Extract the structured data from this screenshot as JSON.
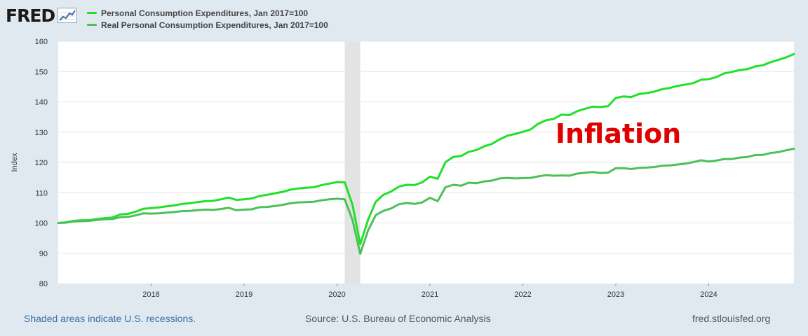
{
  "header": {
    "logo_text": "FRED",
    "logo_icon": "line-graph-icon"
  },
  "colors": {
    "background": "#e1e9f0",
    "plot_bg": "#ffffff",
    "series_1": "#22e02a",
    "series_2": "#4cc05a",
    "recession": "#e3e3e3",
    "annotation": "#e00000"
  },
  "chart_data": {
    "type": "line",
    "title": "",
    "xlabel": "",
    "ylabel": "Index",
    "ylim": [
      80,
      160
    ],
    "yticks": [
      80,
      90,
      100,
      110,
      120,
      130,
      140,
      150,
      160
    ],
    "xlim": [
      2017.0,
      2024.917
    ],
    "xticks": [
      {
        "value": 2018,
        "label": "2018"
      },
      {
        "value": 2019,
        "label": "2019"
      },
      {
        "value": 2020,
        "label": "2020"
      },
      {
        "value": 2021,
        "label": "2021"
      },
      {
        "value": 2022,
        "label": "2022"
      },
      {
        "value": 2023,
        "label": "2023"
      },
      {
        "value": 2024,
        "label": "2024"
      }
    ],
    "grid": true,
    "legend_position": "top-left",
    "recessions": [
      {
        "start": 2020.083,
        "end": 2020.25
      }
    ],
    "annotations": [
      {
        "text": "Inflation",
        "x": 2022.35,
        "y": 126.5
      }
    ],
    "x": [
      2017.0,
      2017.0833,
      2017.1667,
      2017.25,
      2017.3333,
      2017.4167,
      2017.5,
      2017.5833,
      2017.6667,
      2017.75,
      2017.8333,
      2017.9167,
      2018.0,
      2018.0833,
      2018.1667,
      2018.25,
      2018.3333,
      2018.4167,
      2018.5,
      2018.5833,
      2018.6667,
      2018.75,
      2018.8333,
      2018.9167,
      2019.0,
      2019.0833,
      2019.1667,
      2019.25,
      2019.3333,
      2019.4167,
      2019.5,
      2019.5833,
      2019.6667,
      2019.75,
      2019.8333,
      2019.9167,
      2020.0,
      2020.0833,
      2020.1667,
      2020.25,
      2020.3333,
      2020.4167,
      2020.5,
      2020.5833,
      2020.6667,
      2020.75,
      2020.8333,
      2020.9167,
      2021.0,
      2021.0833,
      2021.1667,
      2021.25,
      2021.3333,
      2021.4167,
      2021.5,
      2021.5833,
      2021.6667,
      2021.75,
      2021.8333,
      2021.9167,
      2022.0,
      2022.0833,
      2022.1667,
      2022.25,
      2022.3333,
      2022.4167,
      2022.5,
      2022.5833,
      2022.6667,
      2022.75,
      2022.8333,
      2022.9167,
      2023.0,
      2023.0833,
      2023.1667,
      2023.25,
      2023.3333,
      2023.4167,
      2023.5,
      2023.5833,
      2023.6667,
      2023.75,
      2023.8333,
      2023.9167,
      2024.0,
      2024.0833,
      2024.1667,
      2024.25,
      2024.3333,
      2024.4167,
      2024.5,
      2024.5833,
      2024.6667,
      2024.75,
      2024.8333,
      2024.9167
    ],
    "series": [
      {
        "name": "Personal Consumption Expenditures, Jan 2017=100",
        "values": [
          100.0,
          100.2,
          100.7,
          100.9,
          100.9,
          101.3,
          101.6,
          101.8,
          102.8,
          103.0,
          103.7,
          104.7,
          104.9,
          105.1,
          105.5,
          105.8,
          106.3,
          106.5,
          106.9,
          107.2,
          107.3,
          107.8,
          108.4,
          107.6,
          107.8,
          108.1,
          108.9,
          109.3,
          109.8,
          110.3,
          111.0,
          111.4,
          111.6,
          111.8,
          112.5,
          113.0,
          113.5,
          113.4,
          106.0,
          93.0,
          101.0,
          107.0,
          109.3,
          110.4,
          112.0,
          112.6,
          112.5,
          113.4,
          115.3,
          114.6,
          120.1,
          121.8,
          122.1,
          123.5,
          124.1,
          125.3,
          126.1,
          127.6,
          128.8,
          129.4,
          130.1,
          130.9,
          132.8,
          133.9,
          134.4,
          135.8,
          135.6,
          136.9,
          137.7,
          138.4,
          138.3,
          138.6,
          141.3,
          141.8,
          141.6,
          142.6,
          142.9,
          143.4,
          144.2,
          144.6,
          145.3,
          145.7,
          146.2,
          147.3,
          147.5,
          148.2,
          149.4,
          149.9,
          150.5,
          150.8,
          151.7,
          152.1,
          153.1,
          153.9,
          154.7,
          155.8
        ]
      },
      {
        "name": "Real Personal Consumption Expenditures, Jan 2017=100",
        "values": [
          100.0,
          100.1,
          100.5,
          100.6,
          100.7,
          101.0,
          101.2,
          101.3,
          101.9,
          102.0,
          102.5,
          103.2,
          103.1,
          103.2,
          103.4,
          103.6,
          103.9,
          104.0,
          104.2,
          104.4,
          104.3,
          104.6,
          105.0,
          104.2,
          104.4,
          104.5,
          105.2,
          105.3,
          105.6,
          106.0,
          106.5,
          106.8,
          106.9,
          107.0,
          107.5,
          107.8,
          108.0,
          107.8,
          101.0,
          89.8,
          97.5,
          102.6,
          104.0,
          104.8,
          106.2,
          106.6,
          106.3,
          106.8,
          108.3,
          107.2,
          111.8,
          112.6,
          112.3,
          113.3,
          113.1,
          113.7,
          114.0,
          114.7,
          114.9,
          114.7,
          114.8,
          114.9,
          115.4,
          115.8,
          115.6,
          115.7,
          115.6,
          116.3,
          116.6,
          116.8,
          116.5,
          116.6,
          118.1,
          118.1,
          117.8,
          118.2,
          118.3,
          118.5,
          118.9,
          119.0,
          119.3,
          119.6,
          120.1,
          120.7,
          120.3,
          120.6,
          121.1,
          121.1,
          121.6,
          121.8,
          122.4,
          122.5,
          123.1,
          123.4,
          124.0,
          124.5
        ]
      }
    ]
  },
  "footer": {
    "recession_note": "Shaded areas indicate U.S. recessions.",
    "source": "Source: U.S. Bureau of Economic Analysis",
    "site": "fred.stlouisfed.org"
  }
}
